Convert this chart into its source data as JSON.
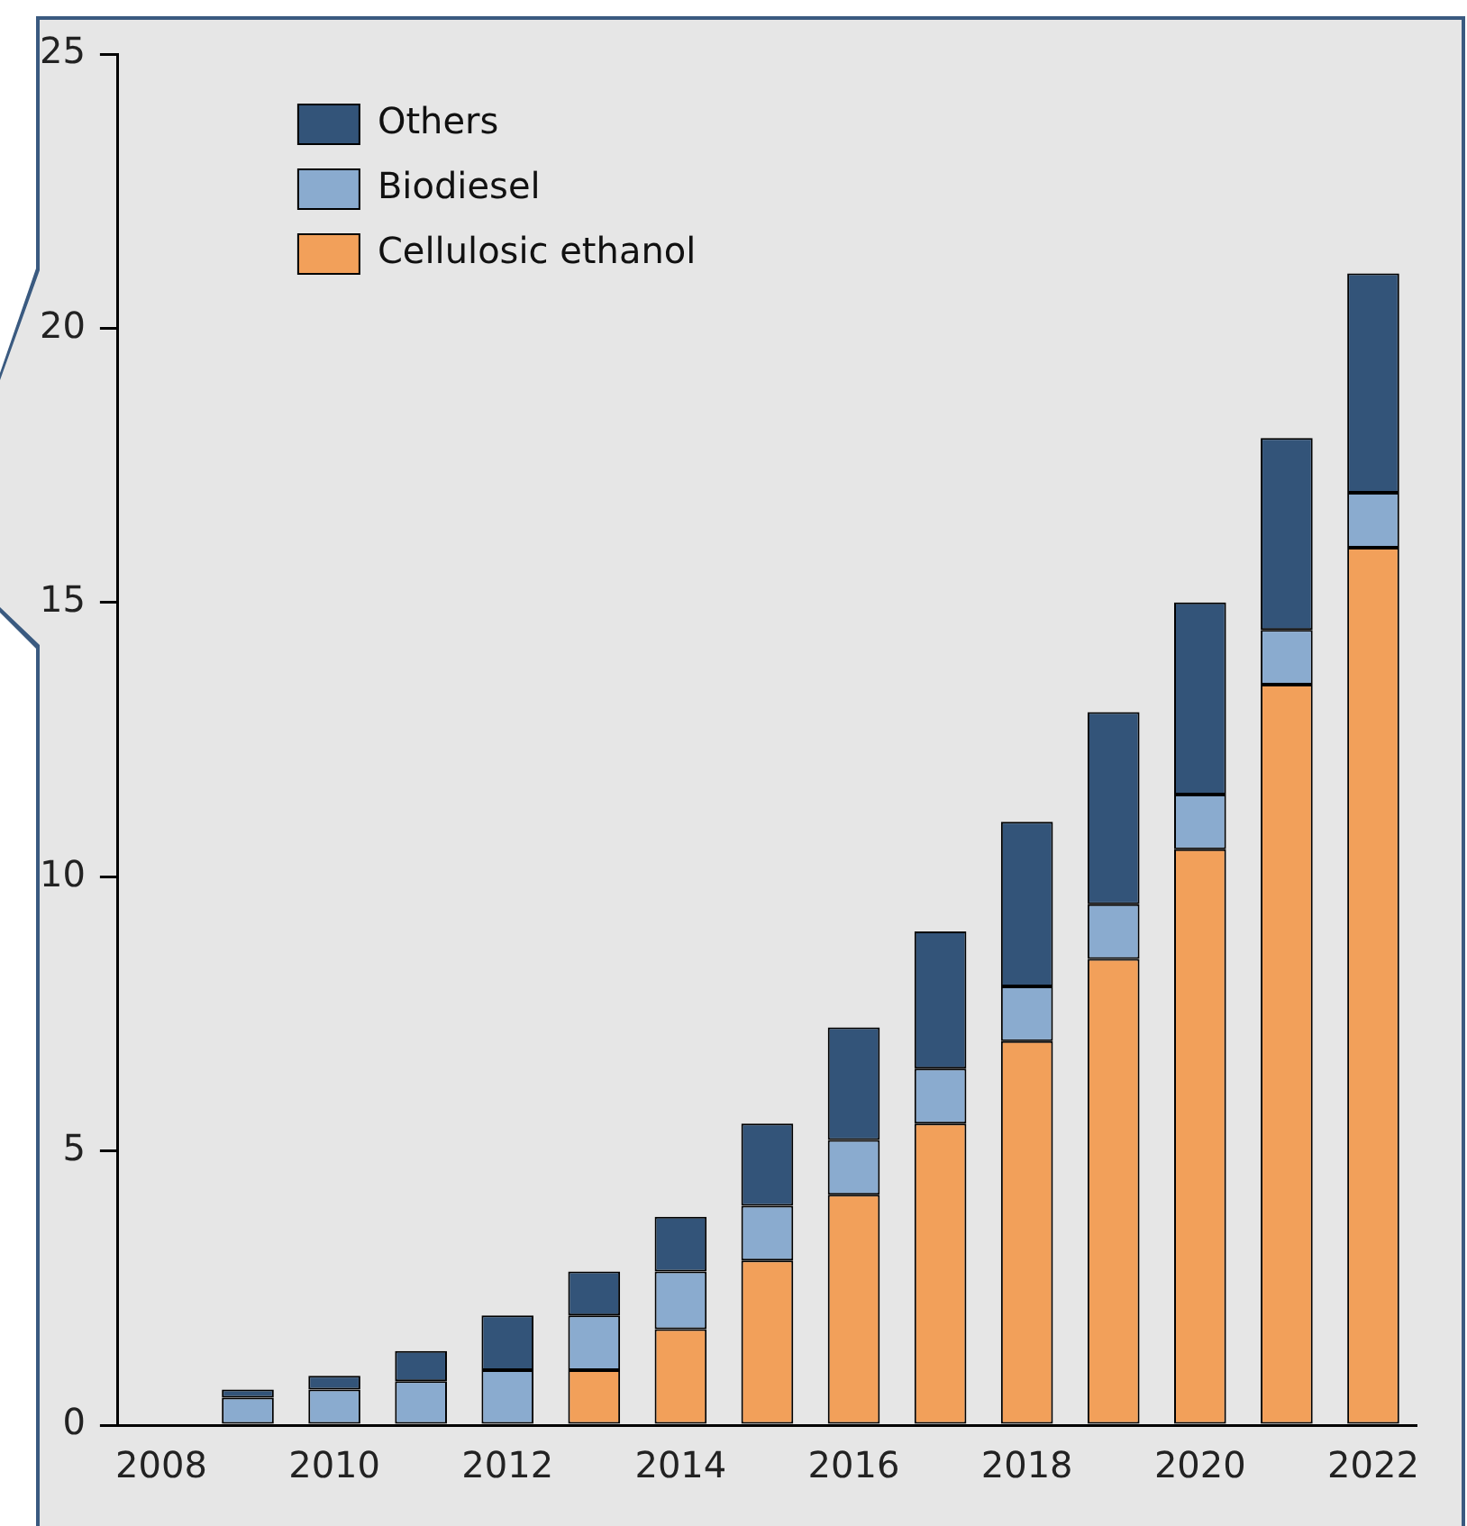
{
  "chart_data": {
    "type": "bar",
    "stacked": true,
    "categories": [
      "2008",
      null,
      "2010",
      null,
      "2012",
      null,
      "2014",
      null,
      "2016",
      null,
      "2018",
      null,
      "2020",
      null,
      "2022"
    ],
    "series": [
      {
        "name": "Cellulosic ethanol",
        "color": "#f2a05a",
        "values": [
          null,
          null,
          null,
          null,
          null,
          1,
          1.75,
          3,
          4.2,
          5.5,
          7,
          8.5,
          10.5,
          13.5,
          16
        ]
      },
      {
        "name": "Biodiesel",
        "color": "#8aabcf",
        "values": [
          null,
          0.5,
          0.65,
          0.8,
          1,
          1,
          1.05,
          1,
          1,
          1,
          1,
          1,
          1,
          1,
          1
        ]
      },
      {
        "name": "Others",
        "color": "#335479",
        "values": [
          null,
          0.15,
          0.25,
          0.55,
          1,
          0.8,
          1,
          1.5,
          2.05,
          2.5,
          3,
          3.5,
          3.5,
          3.5,
          4
        ]
      }
    ],
    "ylim": [
      0,
      25
    ],
    "yticks": [
      0,
      5,
      10,
      15,
      20,
      25
    ],
    "grid": false,
    "legend": "top left"
  }
}
